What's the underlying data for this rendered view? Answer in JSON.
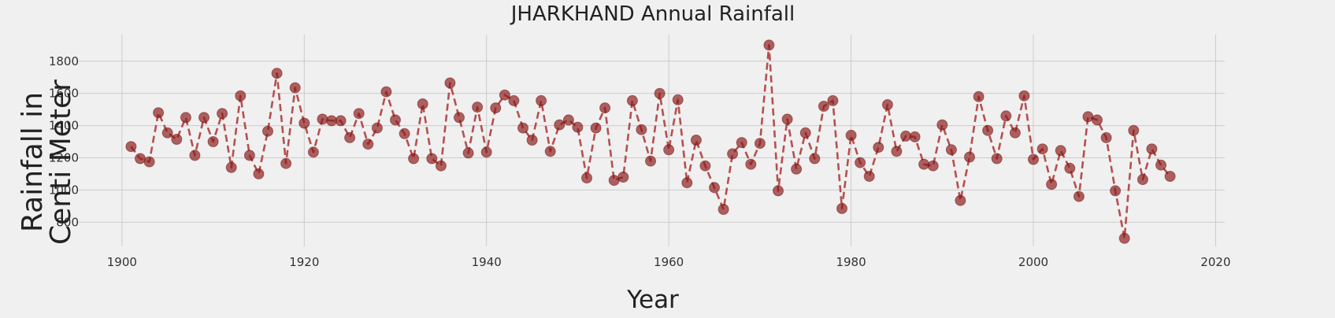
{
  "chart_data": {
    "type": "line",
    "title": "JHARKHAND Annual Rainfall",
    "xlabel": "Year",
    "ylabel_lines": [
      "Rainfall in",
      "Centi Meter"
    ],
    "xlim": [
      1895,
      2021
    ],
    "ylim": [
      650,
      1965
    ],
    "xticks": [
      1900,
      1920,
      1940,
      1960,
      1980,
      2000,
      2020
    ],
    "yticks": [
      800,
      1000,
      1200,
      1400,
      1600,
      1800
    ],
    "grid": true,
    "line_style": "dashed",
    "marker": "circle",
    "color": "#b5504f",
    "series": [
      {
        "x": [
          1901,
          1902,
          1903,
          1904,
          1905,
          1906,
          1907,
          1908,
          1909,
          1910,
          1911,
          1912,
          1913,
          1914,
          1915,
          1916,
          1917,
          1918,
          1919,
          1920,
          1921,
          1922,
          1923,
          1924,
          1925,
          1926,
          1927,
          1928,
          1929,
          1930,
          1931,
          1932,
          1933,
          1934,
          1935,
          1936,
          1937,
          1938,
          1939,
          1940,
          1941,
          1942,
          1943,
          1944,
          1945,
          1946,
          1947,
          1948,
          1949,
          1950,
          1951,
          1952,
          1953,
          1954,
          1955,
          1956,
          1957,
          1958,
          1959,
          1960,
          1961,
          1962,
          1963,
          1964,
          1965,
          1966,
          1967,
          1968,
          1969,
          1970,
          1971,
          1972,
          1973,
          1974,
          1975,
          1976,
          1977,
          1978,
          1979,
          1980,
          1981,
          1982,
          1983,
          1984,
          1985,
          1986,
          1987,
          1988,
          1989,
          1990,
          1991,
          1992,
          1993,
          1994,
          1995,
          1996,
          1997,
          1998,
          1999,
          2000,
          2001,
          2002,
          2003,
          2004,
          2005,
          2006,
          2007,
          2008,
          2009,
          2010,
          2011,
          2012,
          2013,
          2014,
          2015
        ],
        "y": [
          1270,
          1195,
          1175,
          1480,
          1355,
          1315,
          1450,
          1215,
          1450,
          1300,
          1475,
          1140,
          1585,
          1215,
          1100,
          1365,
          1725,
          1165,
          1635,
          1415,
          1235,
          1440,
          1430,
          1430,
          1325,
          1475,
          1285,
          1385,
          1610,
          1435,
          1350,
          1195,
          1535,
          1195,
          1150,
          1665,
          1450,
          1230,
          1515,
          1235,
          1510,
          1590,
          1555,
          1385,
          1310,
          1555,
          1240,
          1405,
          1435,
          1390,
          1075,
          1385,
          1510,
          1060,
          1080,
          1555,
          1375,
          1180,
          1600,
          1250,
          1560,
          1045,
          1310,
          1150,
          1015,
          880,
          1225,
          1295,
          1160,
          1290,
          1900,
          995,
          1440,
          1130,
          1355,
          1195,
          1520,
          1555,
          885,
          1340,
          1170,
          1085,
          1265,
          1530,
          1240,
          1335,
          1330,
          1160,
          1150,
          1405,
          1250,
          935,
          1205,
          1580,
          1370,
          1195,
          1460,
          1355,
          1585,
          1190,
          1255,
          1035,
          1245,
          1135,
          960,
          1455,
          1435,
          1325,
          995,
          700,
          1370,
          1065,
          1255,
          1155,
          1085
        ]
      }
    ]
  }
}
